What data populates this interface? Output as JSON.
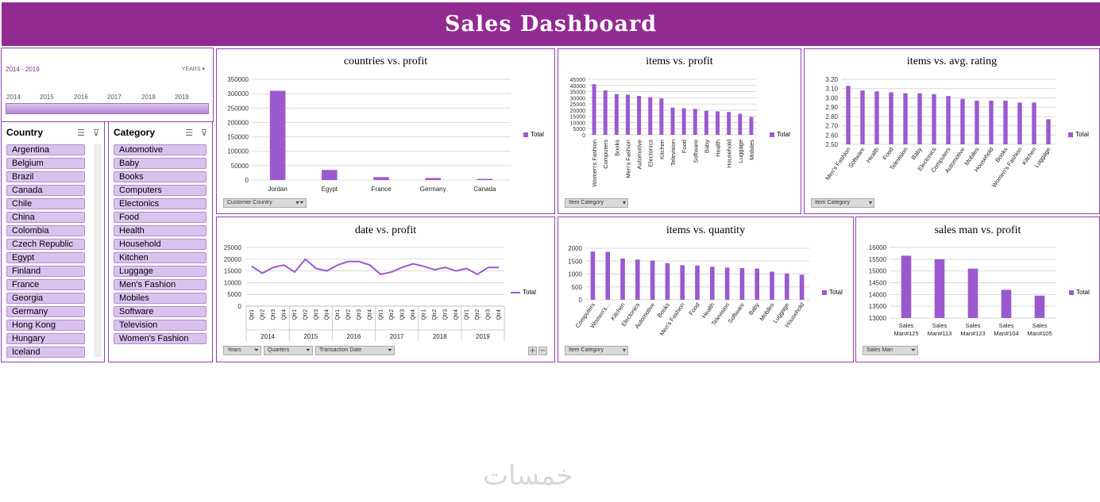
{
  "dashboard_title": "Sales Dashboard",
  "timeline": {
    "range_label": "2014 - 2019",
    "level_label": "YEARS",
    "years": [
      "2014",
      "2015",
      "2016",
      "2017",
      "2018",
      "2019"
    ]
  },
  "country_slicer": {
    "header": "Country",
    "items": [
      "Argentina",
      "Belgium",
      "Brazil",
      "Canada",
      "Chile",
      "China",
      "Colombia",
      "Czech Republic",
      "Egypt",
      "Finland",
      "France",
      "Georgia",
      "Germany",
      "Hong Kong",
      "Hungary",
      "Iceland"
    ]
  },
  "category_slicer": {
    "header": "Category",
    "items": [
      "Automotive",
      "Baby",
      "Books",
      "Computers",
      "Electonics",
      "Food",
      "Health",
      "Household",
      "Kitchen",
      "Luggage",
      "Men's Fashion",
      "Mobiles",
      "Software",
      "Television",
      "Women's Fashion"
    ]
  },
  "filter_buttons": {
    "customer_country": "Customer Country",
    "item_category_1": "Item Category",
    "item_category_2": "Item Category",
    "years": "Years",
    "quarters": "Quarters",
    "transaction_date": "Transaction Date",
    "item_category_3": "Item Category",
    "sales_man": "Sales Man"
  },
  "legend_label": "Total",
  "watermark": "خمسات",
  "colors": {
    "accent": "#922b91",
    "series": "#9b59d0",
    "slicer_item": "#dbc2ee"
  },
  "chart_data": [
    {
      "id": "countries",
      "type": "bar",
      "title": "countries vs. profit",
      "categories": [
        "Jordan",
        "Egypt",
        "France",
        "Germany",
        "Canada"
      ],
      "series": [
        {
          "name": "Total",
          "values": [
            310000,
            35000,
            10000,
            7000,
            4000
          ]
        }
      ],
      "yticks": [
        0,
        50000,
        100000,
        150000,
        200000,
        250000,
        300000,
        350000
      ],
      "ylim": [
        0,
        350000
      ]
    },
    {
      "id": "items_profit",
      "type": "bar",
      "title": "items vs. profit",
      "categories": [
        "Women's Fashion",
        "Computers",
        "Books",
        "Men's Fashion",
        "Automotive",
        "Electonics",
        "Kitchen",
        "Television",
        "Food",
        "Software",
        "Baby",
        "Health",
        "Household",
        "Luggage",
        "Mobiles"
      ],
      "series": [
        {
          "name": "Total",
          "values": [
            41000,
            36000,
            33000,
            32500,
            31500,
            30500,
            29500,
            22000,
            21500,
            21000,
            19500,
            19000,
            18500,
            17000,
            14500
          ]
        }
      ],
      "yticks": [
        0,
        5000,
        10000,
        15000,
        20000,
        25000,
        30000,
        35000,
        40000,
        45000
      ],
      "ylim": [
        0,
        45000
      ]
    },
    {
      "id": "items_rating",
      "type": "bar",
      "title": "items vs. avg. rating",
      "categories": [
        "Men's Fashion",
        "Software",
        "Health",
        "Food",
        "Television",
        "Baby",
        "Electonics",
        "Computers",
        "Automotive",
        "Mobiles",
        "Household",
        "Books",
        "Women's Fashion",
        "Kitchen",
        "Luggage"
      ],
      "series": [
        {
          "name": "Total",
          "values": [
            3.13,
            3.08,
            3.07,
            3.06,
            3.05,
            3.05,
            3.04,
            3.02,
            2.99,
            2.97,
            2.97,
            2.97,
            2.95,
            2.95,
            2.77
          ]
        }
      ],
      "yticks": [
        "2.50",
        "2.60",
        "2.70",
        "2.80",
        "2.90",
        "3.00",
        "3.10",
        "3.20"
      ],
      "ylim": [
        2.5,
        3.2
      ]
    },
    {
      "id": "date_profit",
      "type": "line",
      "title": "date vs. profit",
      "quarters": [
        "Qtr1",
        "Qtr2",
        "Qtr3",
        "Qtr4"
      ],
      "years": [
        "2014",
        "2015",
        "2016",
        "2017",
        "2018",
        "2019"
      ],
      "series": [
        {
          "name": "Total",
          "values": [
            17000,
            14000,
            16500,
            17500,
            14500,
            20000,
            16000,
            15000,
            17500,
            19000,
            19000,
            17500,
            13500,
            14500,
            16500,
            18000,
            17000,
            15500,
            16500,
            15000,
            16000,
            13500,
            16500,
            16500
          ]
        }
      ],
      "yticks": [
        0,
        5000,
        10000,
        15000,
        20000,
        25000
      ],
      "ylim": [
        0,
        25000
      ]
    },
    {
      "id": "items_quantity",
      "type": "bar",
      "title": "items vs. quantity",
      "categories": [
        "Computers",
        "Women's...",
        "Kitchen",
        "Electonics",
        "Automotive",
        "Books",
        "Men's Fashion",
        "Food",
        "Health",
        "Television",
        "Software",
        "Baby",
        "Mobiles",
        "Luggage",
        "Household"
      ],
      "series": [
        {
          "name": "Total",
          "values": [
            1870,
            1860,
            1600,
            1560,
            1520,
            1420,
            1340,
            1330,
            1280,
            1250,
            1230,
            1210,
            1090,
            1020,
            970
          ]
        }
      ],
      "yticks": [
        0,
        500,
        1000,
        1500,
        2000
      ],
      "ylim": [
        0,
        2000
      ]
    },
    {
      "id": "salesman_profit",
      "type": "bar",
      "title": "sales man vs. profit",
      "categories": [
        [
          "Sales",
          "Man#125"
        ],
        [
          "Sales",
          "Man#113"
        ],
        [
          "Sales",
          "Man#123"
        ],
        [
          "Sales",
          "Man#104"
        ],
        [
          "Sales",
          "Man#105"
        ]
      ],
      "series": [
        {
          "name": "Total",
          "values": [
            15650,
            15500,
            15100,
            14200,
            13950
          ]
        }
      ],
      "yticks": [
        13000,
        13500,
        14000,
        14500,
        15000,
        15500,
        16000
      ],
      "ylim": [
        13000,
        16000
      ]
    }
  ]
}
